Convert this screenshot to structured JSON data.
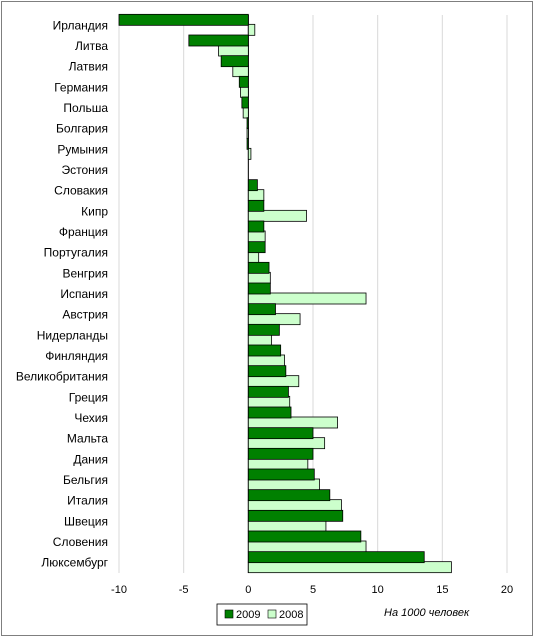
{
  "chart_data": {
    "type": "bar",
    "orientation": "horizontal",
    "categories": [
      "Ирландия",
      "Литва",
      "Латвия",
      "Германия",
      "Польша",
      "Болгария",
      "Румыния",
      "Эстония",
      "Словакия",
      "Кипр",
      "Франция",
      "Португалия",
      "Венгрия",
      "Испания",
      "Австрия",
      "Нидерланды",
      "Финляндия",
      "Великобритания",
      "Греция",
      "Чехия",
      "Мальта",
      "Дания",
      "Бельгия",
      "Италия",
      "Швеция",
      "Словения",
      "Люксембург"
    ],
    "series": [
      {
        "name": "2009",
        "color": "#008000",
        "values": [
          -10.0,
          -4.6,
          -2.1,
          -0.7,
          -0.5,
          -0.1,
          -0.1,
          0.0,
          0.7,
          1.2,
          1.2,
          1.3,
          1.6,
          1.7,
          2.1,
          2.4,
          2.5,
          2.9,
          3.1,
          3.3,
          5.0,
          5.0,
          5.1,
          6.3,
          7.3,
          8.7,
          13.6
        ]
      },
      {
        "name": "2008",
        "color": "#ccffcc",
        "values": [
          0.5,
          -2.3,
          -1.2,
          -0.6,
          -0.4,
          -0.1,
          0.2,
          0.0,
          1.2,
          4.5,
          1.3,
          0.8,
          1.7,
          9.1,
          4.0,
          1.8,
          2.8,
          3.9,
          3.2,
          6.9,
          5.9,
          4.6,
          5.5,
          7.2,
          6.0,
          9.1,
          15.7
        ]
      }
    ],
    "xlim": [
      -10,
      20
    ],
    "xticks": [
      -10,
      -5,
      0,
      5,
      10,
      15,
      20
    ],
    "xtick_labels": [
      "-10",
      "-5",
      "0",
      "5",
      "10",
      "15",
      "20"
    ],
    "xlabel": "На 1000 человек",
    "ylabel": "",
    "title": "",
    "grid": true,
    "legend": {
      "position": "bottom",
      "entries": [
        "2009",
        "2008"
      ]
    }
  },
  "colors": {
    "series_2009": "#008000",
    "series_2008": "#ccffcc",
    "bar_edge": "#000000",
    "grid": "#d9d9d9",
    "frame": "#7f7f7f"
  }
}
